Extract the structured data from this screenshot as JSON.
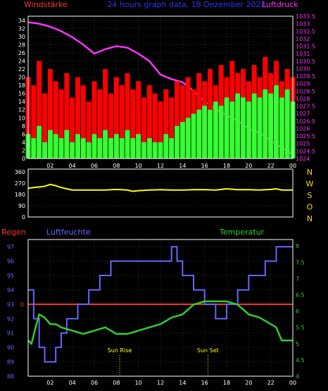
{
  "colors": {
    "wind_avg": "#33ff33",
    "wind_gust": "#ff0000",
    "pressure": "#ff33ff",
    "direction": "#ffff00",
    "humidity": "#6666ff",
    "temperature": "#33cc33",
    "rain": "#ff3333",
    "title": "#3333ff",
    "frame": "#ffffff",
    "tick_text": "#ffffff",
    "dir_text": "#ffd700"
  },
  "chart_data": [
    {
      "type": "line",
      "title": "24 hours graph data, 18 Dezember 2023",
      "left_label": "Windstärke",
      "right_label": "Luftdruck",
      "xlabel": "",
      "x_tick_labels": [
        "02",
        "04",
        "06",
        "08",
        "10",
        "12",
        "14",
        "16",
        "18",
        "20",
        "22",
        "00"
      ],
      "x_range": [
        0,
        24
      ],
      "left_ticks": [
        0,
        2,
        4,
        6,
        8,
        10,
        12,
        14,
        16,
        18,
        20,
        22,
        24,
        26,
        28,
        30,
        32,
        34
      ],
      "left_range": [
        0,
        35
      ],
      "right_ticks": [
        "1024",
        "1024.5",
        "1025",
        "1025.5",
        "1026",
        "1026.5",
        "1027",
        "1027.5",
        "1028",
        "1028.5",
        "1029",
        "1029.5",
        "1030",
        "1030.5",
        "1031",
        "1031.5",
        "1032",
        "1032.5",
        "1033",
        "1033.5"
      ],
      "right_range": [
        1024,
        1033.5
      ],
      "series": [
        {
          "name": "Luftdruck",
          "axis": "right",
          "x": [
            0,
            1,
            2,
            3,
            4,
            5,
            6,
            7,
            8,
            9,
            10,
            11,
            12,
            13,
            14,
            15,
            16,
            17,
            18,
            19,
            20,
            21,
            22,
            23,
            24
          ],
          "values": [
            1033.1,
            1033.0,
            1032.8,
            1032.5,
            1032.1,
            1031.6,
            1031.0,
            1031.3,
            1031.5,
            1031.4,
            1031.0,
            1030.5,
            1029.6,
            1029.3,
            1029.1,
            1028.5,
            1027.8,
            1027.3,
            1026.9,
            1026.5,
            1026.0,
            1025.7,
            1025.2,
            1024.7,
            1024.3
          ]
        },
        {
          "name": "Windböe",
          "axis": "left",
          "x": [
            0,
            0.5,
            1,
            1.5,
            2,
            2.5,
            3,
            3.5,
            4,
            4.5,
            5,
            5.5,
            6,
            6.5,
            7,
            7.5,
            8,
            8.5,
            9,
            9.5,
            10,
            10.5,
            11,
            11.5,
            12,
            12.5,
            13,
            13.5,
            14,
            14.5,
            15,
            15.5,
            16,
            16.5,
            17,
            17.5,
            18,
            18.5,
            19,
            19.5,
            20,
            20.5,
            21,
            21.5,
            22,
            22.5,
            23,
            23.5,
            24
          ],
          "values": [
            20,
            18,
            24,
            16,
            22,
            19,
            17,
            21,
            15,
            20,
            18,
            14,
            19,
            17,
            22,
            16,
            20,
            18,
            21,
            17,
            19,
            15,
            18,
            16,
            14,
            17,
            15,
            19,
            18,
            20,
            17,
            21,
            19,
            22,
            18,
            23,
            20,
            24,
            21,
            22,
            19,
            23,
            20,
            25,
            21,
            24,
            19,
            22,
            20
          ]
        },
        {
          "name": "Windstärke",
          "axis": "left",
          "x": [
            0,
            0.5,
            1,
            1.5,
            2,
            2.5,
            3,
            3.5,
            4,
            4.5,
            5,
            5.5,
            6,
            6.5,
            7,
            7.5,
            8,
            8.5,
            9,
            9.5,
            10,
            10.5,
            11,
            11.5,
            12,
            12.5,
            13,
            13.5,
            14,
            14.5,
            15,
            15.5,
            16,
            16.5,
            17,
            17.5,
            18,
            18.5,
            19,
            19.5,
            20,
            20.5,
            21,
            21.5,
            22,
            22.5,
            23,
            23.5,
            24
          ],
          "values": [
            6,
            5,
            8,
            4,
            7,
            6,
            5,
            7,
            4,
            6,
            5,
            4,
            6,
            5,
            7,
            5,
            6,
            5,
            7,
            5,
            6,
            4,
            5,
            4,
            4,
            6,
            5,
            8,
            9,
            10,
            11,
            12,
            13,
            12,
            14,
            13,
            15,
            14,
            16,
            15,
            14,
            16,
            15,
            17,
            16,
            18,
            15,
            17,
            14
          ]
        }
      ]
    },
    {
      "type": "line",
      "title": "",
      "x_range": [
        0,
        24
      ],
      "left_ticks": [
        0,
        90,
        180,
        270,
        360
      ],
      "left_range": [
        0,
        360
      ],
      "dir_labels": [
        "N",
        "W",
        "S",
        "O",
        "N"
      ],
      "series": [
        {
          "name": "Windrichtung",
          "x": [
            0,
            1,
            1.5,
            2,
            2.5,
            3,
            3.5,
            4,
            5,
            6,
            7,
            8,
            9,
            9.5,
            10,
            11,
            12,
            13,
            14,
            15,
            16,
            17,
            18,
            19,
            20,
            21,
            22,
            22.5,
            23,
            24
          ],
          "values": [
            230,
            240,
            245,
            260,
            250,
            235,
            225,
            215,
            215,
            215,
            215,
            220,
            215,
            205,
            210,
            215,
            218,
            215,
            215,
            218,
            218,
            215,
            225,
            218,
            218,
            215,
            220,
            225,
            215,
            215
          ]
        }
      ]
    },
    {
      "type": "line",
      "title": "",
      "rain_label": "Regen",
      "humidity_label": "Luftfeuchte",
      "temperature_label": "Temperatur",
      "x_tick_labels": [
        "02",
        "04",
        "06",
        "08",
        "10",
        "12",
        "14",
        "16",
        "18",
        "20",
        "22",
        "00"
      ],
      "x_range": [
        0,
        24
      ],
      "left_ticks": [
        88,
        89,
        90,
        91,
        92,
        93,
        94,
        95,
        96,
        97
      ],
      "left_range": [
        88,
        97.5
      ],
      "right_ticks": [
        "4",
        "4.5",
        "5",
        "5.5",
        "6",
        "6.5",
        "7",
        "7.5",
        "8"
      ],
      "right_range": [
        4,
        8.2
      ],
      "rain_value": 0,
      "annotations": [
        {
          "text": "Sun Rise",
          "x": 8.3
        },
        {
          "text": "Sun Set",
          "x": 16.3
        }
      ],
      "series": [
        {
          "name": "Luftfeuchte",
          "axis": "left",
          "x": [
            0,
            0.5,
            0.5,
            1.0,
            1.0,
            1.5,
            1.5,
            2.5,
            2.5,
            3.0,
            3.0,
            3.5,
            3.5,
            4.5,
            4.5,
            5.5,
            5.5,
            6.5,
            6.5,
            7.5,
            7.5,
            13.0,
            13.0,
            13.5,
            13.5,
            14.0,
            14.0,
            15.0,
            15.0,
            16.0,
            16.0,
            17.0,
            17.0,
            18.0,
            18.0,
            19.0,
            19.0,
            20.0,
            20.0,
            21.5,
            21.5,
            22.5,
            22.5,
            23.5,
            23.5,
            24
          ],
          "values": [
            94,
            94,
            92,
            92,
            90,
            90,
            89,
            89,
            90,
            90,
            91,
            91,
            92,
            92,
            93,
            93,
            94,
            94,
            95,
            95,
            96,
            96,
            97,
            97,
            96,
            96,
            95,
            95,
            94,
            94,
            93,
            93,
            92,
            92,
            93,
            93,
            94,
            94,
            95,
            95,
            96,
            96,
            97,
            97,
            97,
            97
          ]
        },
        {
          "name": "Temperatur",
          "axis": "right",
          "x": [
            0,
            0.3,
            0.6,
            1.0,
            1.5,
            2.0,
            2.5,
            3.0,
            4.0,
            5.0,
            6.0,
            7.0,
            7.5,
            8.0,
            8.5,
            9.0,
            10.0,
            11.0,
            12.0,
            13.0,
            14.0,
            15.0,
            16.0,
            17.0,
            18.0,
            19.0,
            20.0,
            21.0,
            22.0,
            22.5,
            23.0,
            23.5,
            24.0
          ],
          "values": [
            5.1,
            5.0,
            5.4,
            5.9,
            5.8,
            5.6,
            5.6,
            5.5,
            5.4,
            5.3,
            5.4,
            5.5,
            5.4,
            5.3,
            5.3,
            5.3,
            5.4,
            5.5,
            5.6,
            5.8,
            5.9,
            6.2,
            6.3,
            6.3,
            6.3,
            6.2,
            5.9,
            5.8,
            5.6,
            5.5,
            5.1,
            5.1,
            5.1
          ]
        }
      ]
    }
  ]
}
